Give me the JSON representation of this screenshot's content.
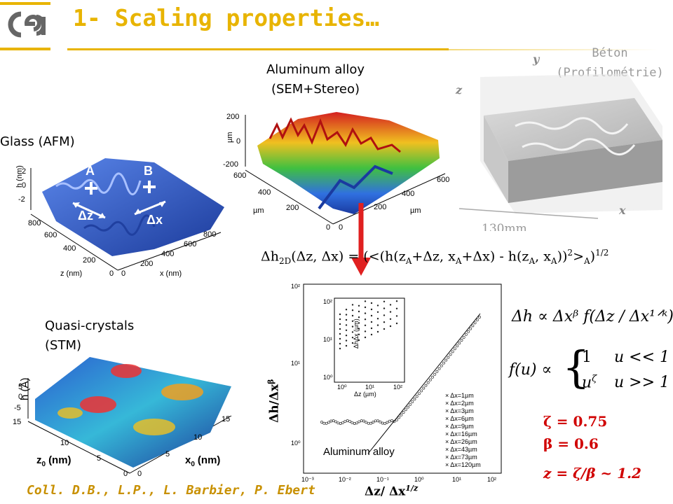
{
  "header": {
    "logo_text": "cea",
    "title": "1- Scaling properties…"
  },
  "panels": {
    "aluminum": {
      "title_line1": "Aluminum alloy",
      "title_line2": "(SEM+Stereo)",
      "z_unit": "µm",
      "z_ticks": [
        "200",
        "0",
        "-200"
      ],
      "x_ticks": [
        "600",
        "400",
        "200",
        "0"
      ],
      "y_ticks": [
        "0",
        "200",
        "400",
        "600"
      ],
      "x_unit": "µm",
      "y_unit": "µm"
    },
    "glass": {
      "title": "Glass (AFM)",
      "point_a": "A",
      "point_b": "B",
      "dz": "Δz",
      "dx": "Δx",
      "z_unit": "h (nm)",
      "z_ticks": [
        "2",
        "0",
        "-2"
      ],
      "zaxis_ticks": [
        "800",
        "600",
        "400",
        "200",
        "0"
      ],
      "xaxis_ticks": [
        "0",
        "200",
        "400",
        "600",
        "800"
      ],
      "zaxis_label": "z (nm)",
      "xaxis_label": "x (nm)"
    },
    "beton": {
      "title_line1": "Béton",
      "title_line2": "(Profilométrie)",
      "axis_y": "y",
      "axis_z": "z",
      "axis_x": "x",
      "scale": "130mm"
    },
    "quasi": {
      "title_line1": "Quasi-crystals",
      "title_line2": "(STM)",
      "h_unit": "h (Å)",
      "h_ticks": [
        "5",
        "0",
        "-5",
        "15"
      ],
      "z_ticks": [
        "10",
        "5",
        "0"
      ],
      "x_ticks": [
        "15",
        "10",
        "5",
        "0"
      ],
      "z_label": "z",
      "z_sub": "0",
      "z_unit": "(nm)",
      "x_label": "x",
      "x_sub": "0",
      "x_unit": "(nm)"
    }
  },
  "formulas": {
    "dh2d": {
      "lead": "Δh",
      "sub_2d": "2D",
      "args": "(Δz, Δx) = (<(h(z",
      "a1": "A",
      "p1": "+Δz, x",
      "a2": "A",
      "p2": "+Δx) - h(z",
      "a3": "A",
      "p3": ", x",
      "a4": "A",
      "p4": "))",
      "sq": "2",
      "p5": ">",
      "a5": "A",
      "p6": ")",
      "half": "1/2"
    },
    "scaling1": "Δh ∝ Δxᵝ f(Δz / Δx¹ᐟᵏ)",
    "f_lhs": "f(u) ∝",
    "f_case1_val": "1",
    "f_case1_cond": "u << 1",
    "f_case2_val": "u",
    "f_case2_exp": "ζ",
    "f_case2_cond": "u >> 1",
    "zeta": "ζ = 0.75",
    "beta": "β = 0.6",
    "z_ratio": "z = ζ/β ~ 1.2"
  },
  "collapse_plot": {
    "ylabel": "Δh/Δx",
    "ylabel_exp": "β",
    "xlabel": "Δz/ Δx",
    "xlabel_exp": "1/z",
    "annotation": "Aluminum alloy",
    "x_ticks": [
      "10⁻³",
      "10⁻²",
      "10⁻¹",
      "10⁰",
      "10¹",
      "10²"
    ],
    "y_ticks": [
      "10²",
      "10¹",
      "10⁰"
    ],
    "inset_ylabel": "ΔhΔx (µm)",
    "inset_xlabel": "Δz (µm)",
    "inset_x_ticks": [
      "10⁰",
      "10¹",
      "10²"
    ],
    "inset_y_ticks": [
      "10²",
      "10¹",
      "10⁰"
    ],
    "legend": [
      "Δx=1µm",
      "Δx=2µm",
      "Δx=3µm",
      "Δx=6µm",
      "Δx=9µm",
      "Δx=16µm",
      "Δx=26µm",
      "Δx=43µm",
      "Δx=73µm",
      "Δx=120µm"
    ]
  },
  "footer": {
    "credit": "Coll. D.B., L.P., L. Barbier, P. Ebert"
  },
  "colors": {
    "title": "#e8b400",
    "rule": "#e8b400",
    "arrow": "#e02020",
    "results": "#d00000",
    "credit": "#c89000"
  }
}
